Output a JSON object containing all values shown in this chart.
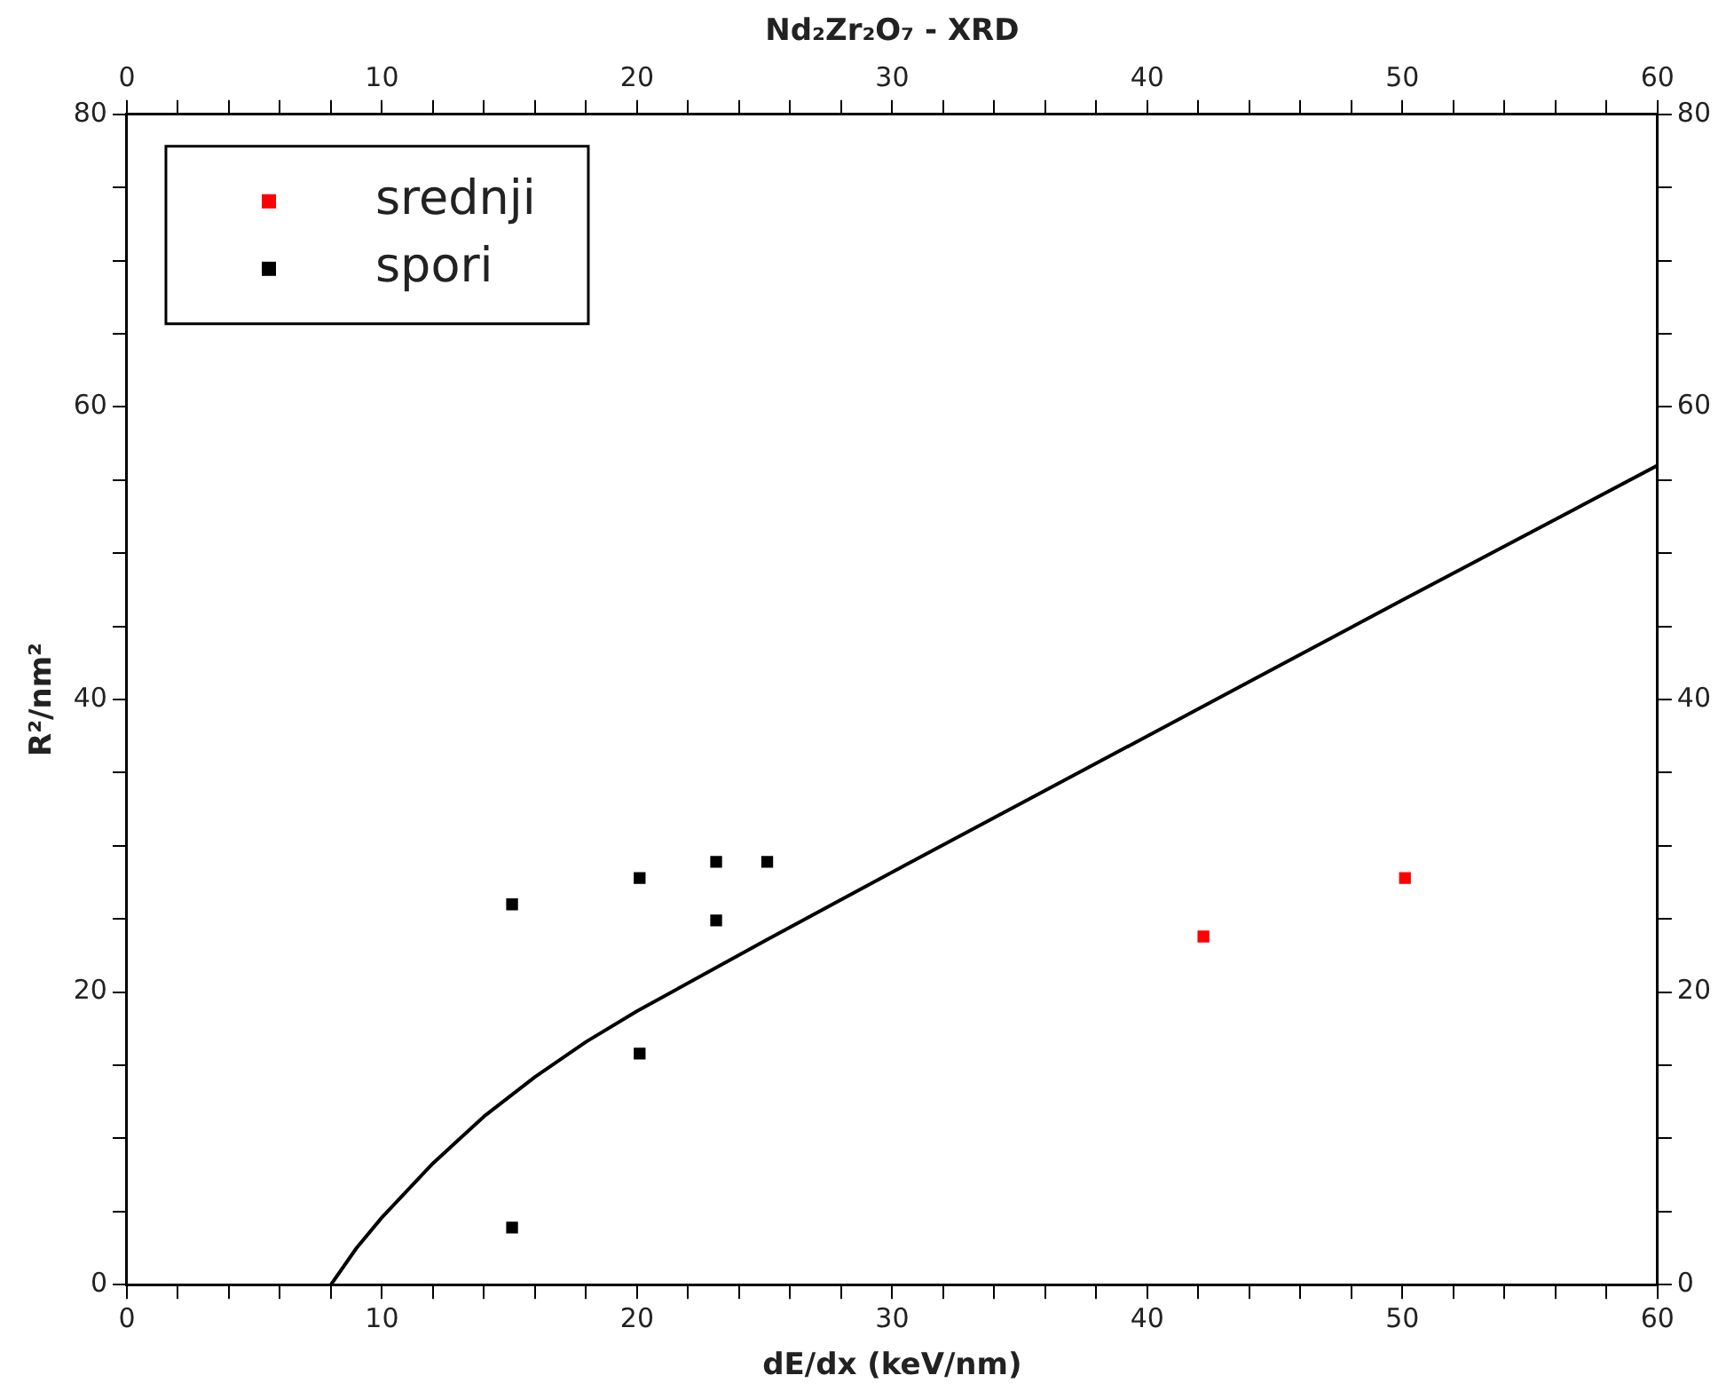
{
  "chart_data": {
    "type": "scatter",
    "title": "Nd₂Zr₂O₇ - XRD",
    "xlabel": "dE/dx (keV/nm)",
    "ylabel": "R²/nm²",
    "xlim": [
      0,
      60
    ],
    "xticks": [
      0,
      {
        "value": 2,
        "label": null
      },
      {
        "value": 4,
        "label": null
      },
      {
        "value": 6,
        "label": null
      },
      {
        "value": 8,
        "label": null
      },
      10,
      {
        "value": 12,
        "label": null
      },
      {
        "value": 14,
        "label": null
      },
      {
        "value": 16,
        "label": null
      },
      {
        "value": 18,
        "label": null
      },
      20,
      {
        "value": 22,
        "label": null
      },
      {
        "value": 24,
        "label": null
      },
      {
        "value": 26,
        "label": null
      },
      {
        "value": 28,
        "label": null
      },
      30,
      {
        "value": 32,
        "label": null
      },
      {
        "value": 34,
        "label": null
      },
      {
        "value": 36,
        "label": null
      },
      {
        "value": 38,
        "label": null
      },
      40,
      {
        "value": 42,
        "label": null
      },
      {
        "value": 44,
        "label": null
      },
      {
        "value": 46,
        "label": null
      },
      {
        "value": 48,
        "label": null
      },
      50,
      {
        "value": 52,
        "label": null
      },
      {
        "value": 54,
        "label": null
      },
      {
        "value": 56,
        "label": null
      },
      {
        "value": 58,
        "label": null
      },
      60
    ],
    "x2lim": [
      0,
      60
    ],
    "x2ticks": [
      0,
      {
        "value": 2,
        "label": null
      },
      {
        "value": 4,
        "label": null
      },
      {
        "value": 6,
        "label": null
      },
      {
        "value": 8,
        "label": null
      },
      10,
      {
        "value": 12,
        "label": null
      },
      {
        "value": 14,
        "label": null
      },
      {
        "value": 16,
        "label": null
      },
      {
        "value": 18,
        "label": null
      },
      20,
      {
        "value": 22,
        "label": null
      },
      {
        "value": 24,
        "label": null
      },
      {
        "value": 26,
        "label": null
      },
      {
        "value": 28,
        "label": null
      },
      30,
      {
        "value": 32,
        "label": null
      },
      {
        "value": 34,
        "label": null
      },
      {
        "value": 36,
        "label": null
      },
      {
        "value": 38,
        "label": null
      },
      40,
      {
        "value": 42,
        "label": null
      },
      {
        "value": 44,
        "label": null
      },
      {
        "value": 46,
        "label": null
      },
      {
        "value": 48,
        "label": null
      },
      50,
      {
        "value": 52,
        "label": null
      },
      {
        "value": 54,
        "label": null
      },
      {
        "value": 56,
        "label": null
      },
      {
        "value": 58,
        "label": null
      },
      60
    ],
    "ylim": [
      0,
      80
    ],
    "yticks": [
      0,
      {
        "value": 5,
        "label": null
      },
      {
        "value": 10,
        "label": null
      },
      {
        "value": 15,
        "label": null
      },
      20,
      {
        "value": 25,
        "label": null
      },
      {
        "value": 30,
        "label": null
      },
      {
        "value": 35,
        "label": null
      },
      40,
      {
        "value": 45,
        "label": null
      },
      {
        "value": 50,
        "label": null
      },
      {
        "value": 55,
        "label": null
      },
      60,
      {
        "value": 65,
        "label": null
      },
      {
        "value": 70,
        "label": null
      },
      {
        "value": 75,
        "label": null
      },
      80
    ],
    "y2lim": [
      0,
      80
    ],
    "y2ticks": [
      0,
      {
        "value": 5,
        "label": null
      },
      {
        "value": 10,
        "label": null
      },
      {
        "value": 15,
        "label": null
      },
      20,
      {
        "value": 25,
        "label": null
      },
      {
        "value": 30,
        "label": null
      },
      {
        "value": 35,
        "label": null
      },
      40,
      {
        "value": 45,
        "label": null
      },
      {
        "value": 50,
        "label": null
      },
      {
        "value": 55,
        "label": null
      },
      60,
      {
        "value": 65,
        "label": null
      },
      {
        "value": 70,
        "label": null
      },
      {
        "value": 75,
        "label": null
      },
      80
    ],
    "grid": false,
    "legend": "top left",
    "marker": "square",
    "series": [
      {
        "name": "srednji",
        "color": "#ff0000",
        "x": [
          42.2,
          50.1
        ],
        "values": [
          23.8,
          27.8
        ]
      },
      {
        "name": "spori",
        "color": "#000000",
        "x": [
          15.1,
          20.1,
          23.1,
          25.1,
          23.1,
          20.1,
          15.1
        ],
        "values": [
          26,
          27.8,
          28.9,
          28.9,
          24.9,
          15.8,
          3.9
        ]
      },
      {
        "type": "line",
        "color": "#000000",
        "marker": "none",
        "line_style": "solid",
        "x": [
          8,
          9,
          10,
          12,
          14,
          16,
          18,
          20,
          25,
          30,
          40,
          50,
          60
        ],
        "values": [
          0,
          2.5,
          4.6,
          8.3,
          11.5,
          14.2,
          16.6,
          18.7,
          23.5,
          28.2,
          37.5,
          46.8,
          56
        ]
      }
    ]
  }
}
